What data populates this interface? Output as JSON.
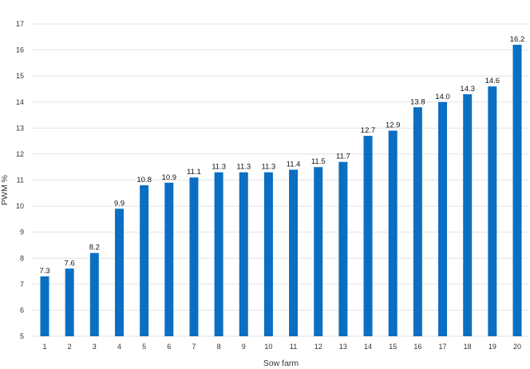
{
  "chart_data": {
    "type": "bar",
    "title": "",
    "xlabel": "Sow farm",
    "ylabel": "PWM %",
    "ylim": [
      5,
      17
    ],
    "yticks": [
      5,
      6,
      7,
      8,
      9,
      10,
      11,
      12,
      13,
      14,
      15,
      16,
      17
    ],
    "grid": true,
    "legend": "none",
    "bar_color": "#0a6fc2",
    "categories": [
      "1",
      "2",
      "3",
      "4",
      "5",
      "6",
      "7",
      "8",
      "9",
      "10",
      "11",
      "12",
      "13",
      "14",
      "15",
      "16",
      "17",
      "18",
      "19",
      "20"
    ],
    "values": [
      7.3,
      7.6,
      8.2,
      9.9,
      10.8,
      10.9,
      11.1,
      11.3,
      11.3,
      11.3,
      11.4,
      11.5,
      11.7,
      12.7,
      12.9,
      13.8,
      14.0,
      14.3,
      14.6,
      16.2
    ],
    "data_labels": [
      "7.3",
      "7.6",
      "8.2",
      "9.9",
      "10.8",
      "10.9",
      "11.1",
      "11.3",
      "11.3",
      "11.3",
      "11.4",
      "11.5",
      "11.7",
      "12.7",
      "12.9",
      "13.8",
      "14.0",
      "14.3",
      "14.6",
      "16.2"
    ]
  }
}
